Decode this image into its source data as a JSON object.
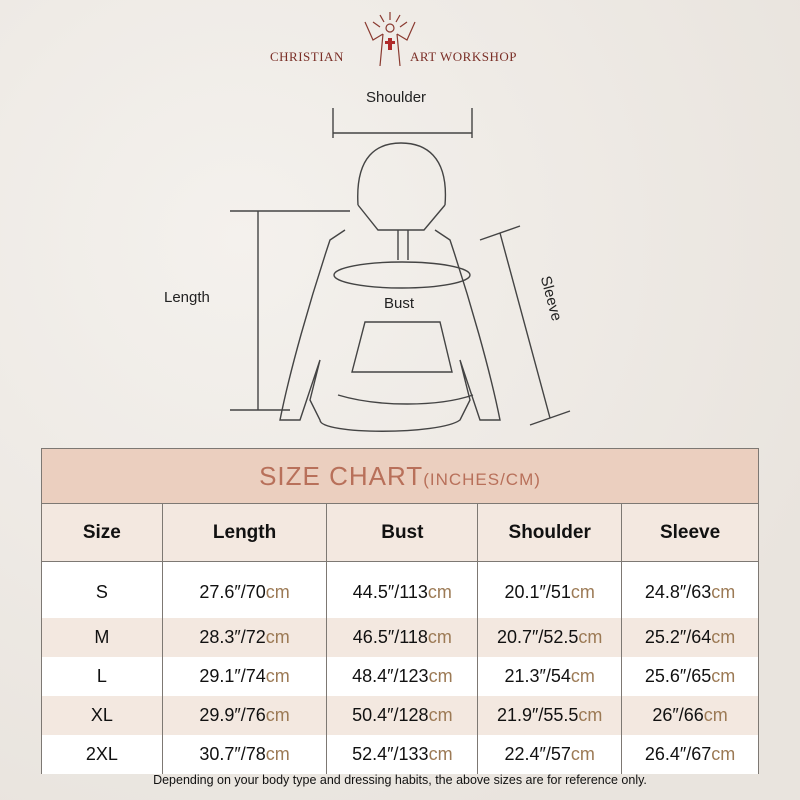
{
  "brand": {
    "left": "CHRISTIAN",
    "right": "ART WORKSHOP"
  },
  "diagram": {
    "shoulder": "Shoulder",
    "length": "Length",
    "bust": "Bust",
    "sleeve": "Sleeve"
  },
  "chart": {
    "title": "SIZE CHART",
    "unit": "(INCHES/CM)",
    "headers": [
      "Size",
      "Length",
      "Bust",
      "Shoulder",
      "Sleeve"
    ],
    "rows": [
      {
        "size": "S",
        "values": [
          {
            "in": "27.6″/70",
            "cm": "cm"
          },
          {
            "in": "44.5″/113",
            "cm": "cm"
          },
          {
            "in": "20.1″/51",
            "cm": "cm"
          },
          {
            "in": "24.8″/63",
            "cm": "cm"
          }
        ]
      },
      {
        "size": "M",
        "values": [
          {
            "in": "28.3″/72",
            "cm": "cm"
          },
          {
            "in": "46.5″/118",
            "cm": "cm"
          },
          {
            "in": "20.7″/52.5",
            "cm": "cm"
          },
          {
            "in": "25.2″/64",
            "cm": "cm"
          }
        ]
      },
      {
        "size": "L",
        "values": [
          {
            "in": "29.1″/74",
            "cm": "cm"
          },
          {
            "in": "48.4″/123",
            "cm": "cm"
          },
          {
            "in": "21.3″/54",
            "cm": "cm"
          },
          {
            "in": "25.6″/65",
            "cm": "cm"
          }
        ]
      },
      {
        "size": "XL",
        "values": [
          {
            "in": "29.9″/76",
            "cm": "cm"
          },
          {
            "in": "50.4″/128",
            "cm": "cm"
          },
          {
            "in": "21.9″/55.5",
            "cm": "cm"
          },
          {
            "in": "26″/66",
            "cm": "cm"
          }
        ]
      },
      {
        "size": "2XL",
        "values": [
          {
            "in": "30.7″/78",
            "cm": "cm"
          },
          {
            "in": "52.4″/133",
            "cm": "cm"
          },
          {
            "in": "22.4″/57",
            "cm": "cm"
          },
          {
            "in": "26.4″/67",
            "cm": "cm"
          }
        ]
      }
    ]
  },
  "note": "Depending on your body type and dressing habits, the above sizes are for reference only."
}
